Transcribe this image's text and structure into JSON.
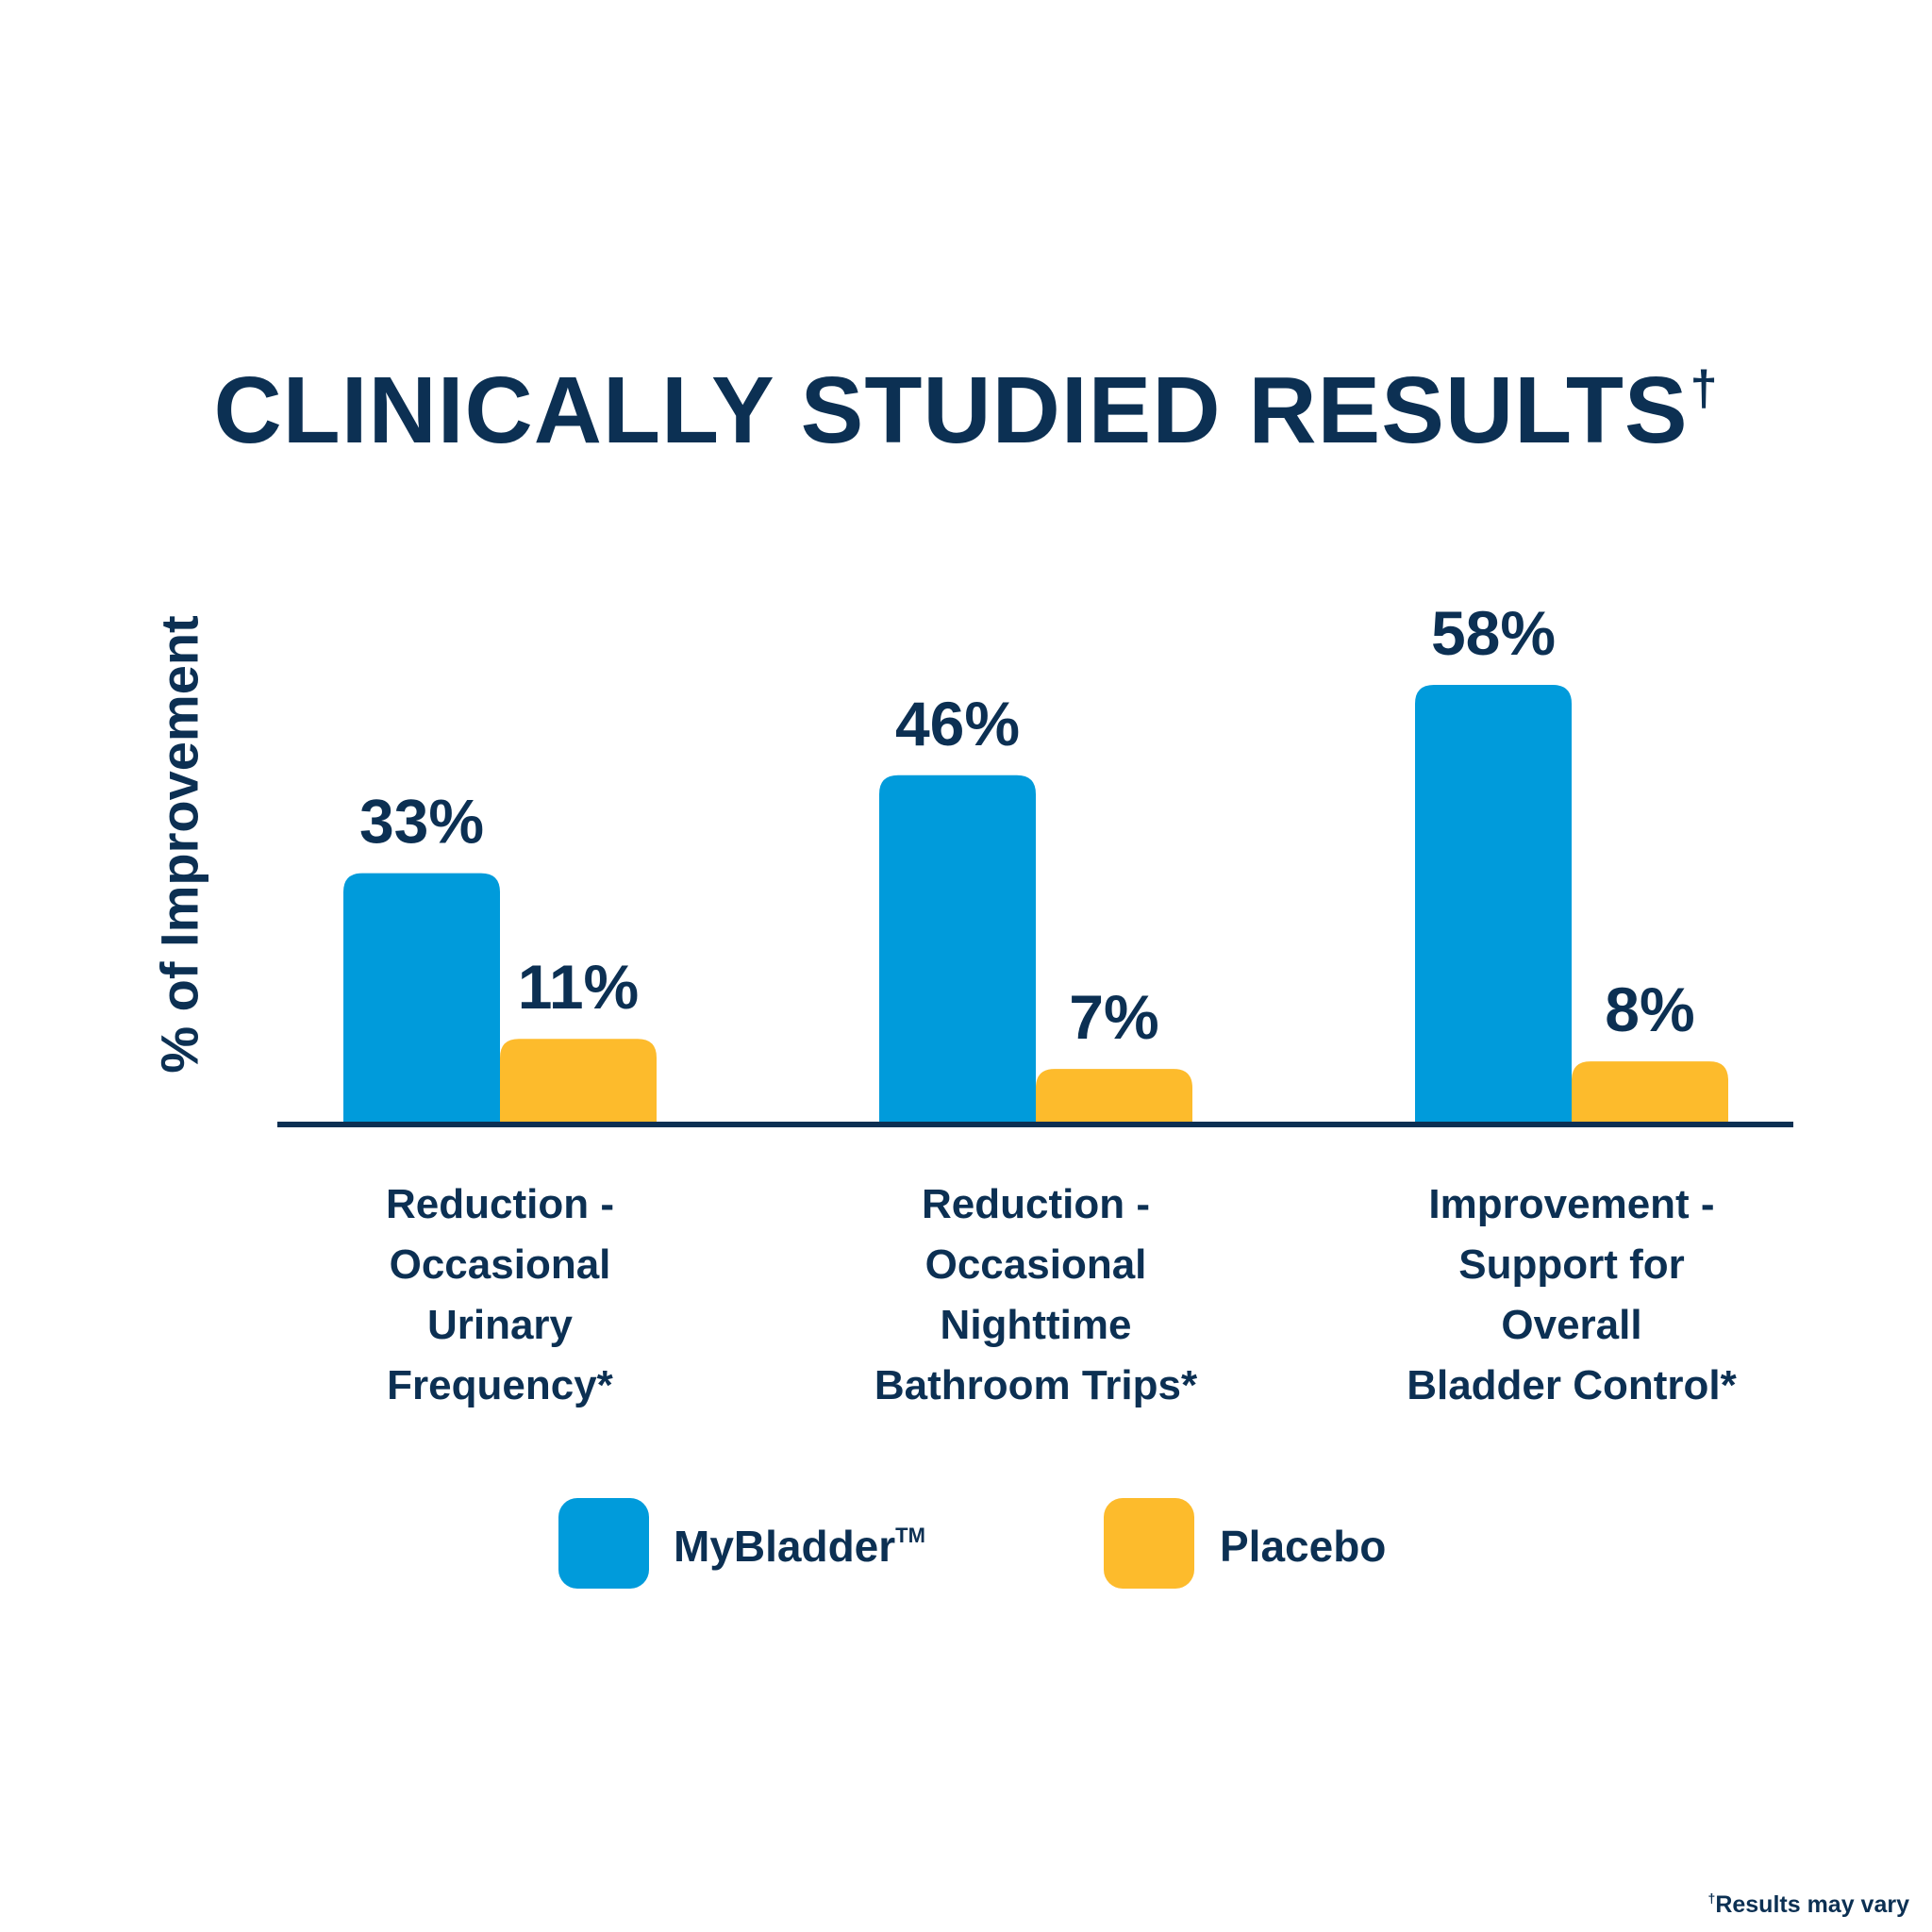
{
  "chart_data": {
    "type": "bar",
    "title": "CLINICALLY STUDIED RESULTS",
    "title_mark": "†",
    "xlabel": "",
    "ylabel": "% of Improvement",
    "ylim": [
      0,
      60
    ],
    "grid": false,
    "categories": [
      [
        "Reduction -",
        "Occasional",
        "Urinary",
        "Frequency*"
      ],
      [
        "Reduction -",
        "Occasional",
        "Nighttime",
        "Bathroom Trips*"
      ],
      [
        "Improvement -",
        "Support for",
        "Overall",
        "Bladder Control*"
      ]
    ],
    "series": [
      {
        "name": "MyBladder",
        "name_mark": "TM",
        "color": "#009bdb",
        "values": [
          33,
          46,
          58
        ],
        "labels": [
          "33%",
          "46%",
          "58%"
        ]
      },
      {
        "name": "Placebo",
        "name_mark": "",
        "color": "#fdbb2c",
        "values": [
          11,
          7,
          8
        ],
        "labels": [
          "11%",
          "7%",
          "8%"
        ]
      }
    ],
    "legend_position": "bottom-center",
    "footnote": {
      "mark": "†",
      "text": "Results may vary"
    }
  },
  "colors": {
    "text": "#0c3053",
    "axis": "#0c3053"
  }
}
